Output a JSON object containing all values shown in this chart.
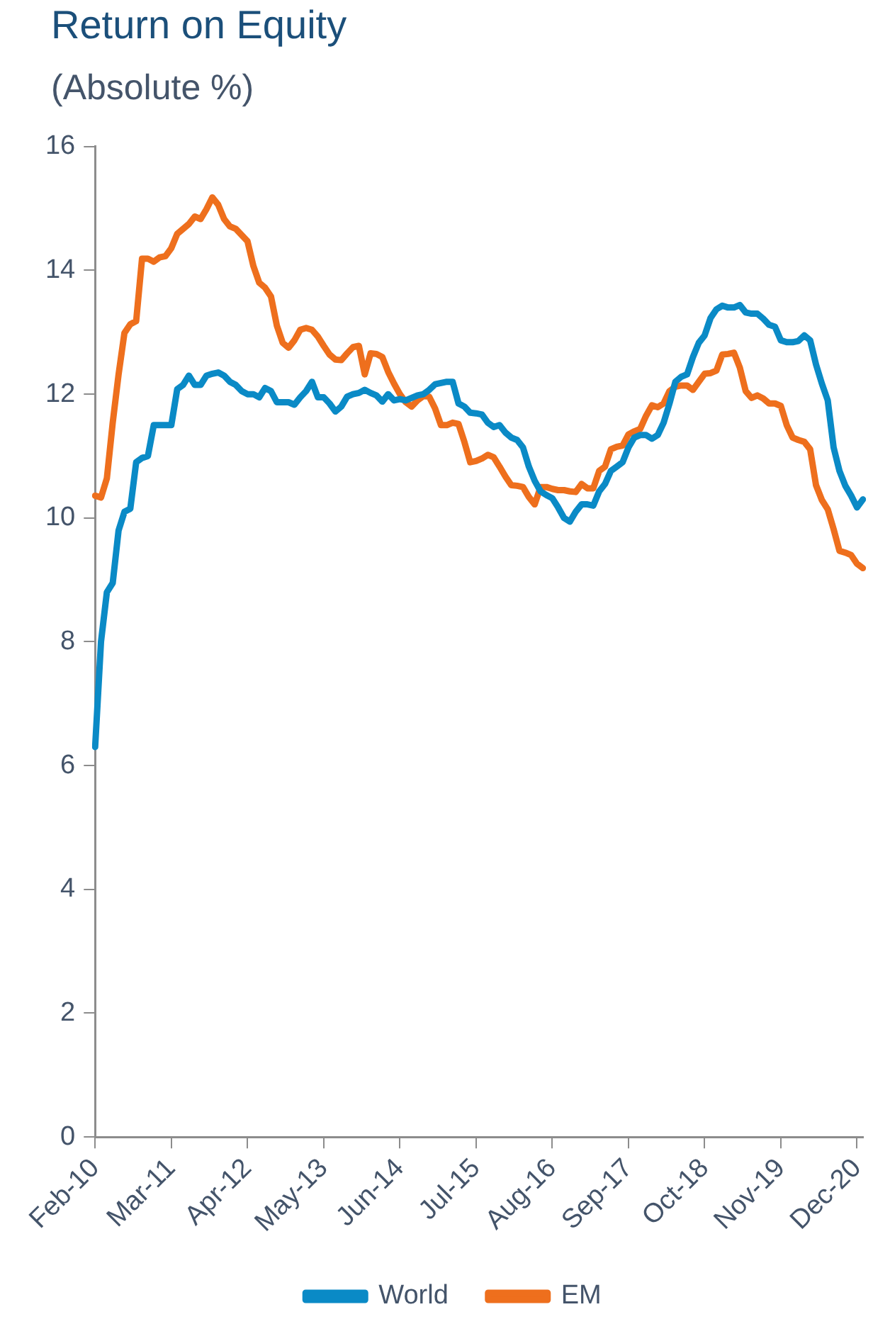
{
  "chart_data": {
    "type": "line",
    "title": "Return on Equity",
    "subtitle": "(Absolute %)",
    "categories": [
      "Feb-10",
      null,
      null,
      null,
      null,
      null,
      null,
      null,
      null,
      null,
      null,
      null,
      null,
      "Mar-11",
      null,
      null,
      null,
      null,
      null,
      null,
      null,
      null,
      null,
      null,
      null,
      null,
      "Apr-12",
      null,
      null,
      null,
      null,
      null,
      null,
      null,
      null,
      null,
      null,
      null,
      null,
      "May-13",
      null,
      null,
      null,
      null,
      null,
      null,
      null,
      null,
      null,
      null,
      null,
      null,
      "Jun-14",
      null,
      null,
      null,
      null,
      null,
      null,
      null,
      null,
      null,
      null,
      null,
      null,
      "Jul-15",
      null,
      null,
      null,
      null,
      null,
      null,
      null,
      null,
      null,
      null,
      null,
      null,
      "Aug-16",
      null,
      null,
      null,
      null,
      null,
      null,
      null,
      null,
      null,
      null,
      null,
      null,
      "Sep-17",
      null,
      null,
      null,
      null,
      null,
      null,
      null,
      null,
      null,
      null,
      null,
      null,
      "Oct-18",
      null,
      null,
      null,
      null,
      null,
      null,
      null,
      null,
      null,
      null,
      null,
      null,
      "Nov-19",
      null,
      null,
      null,
      null,
      null,
      null,
      null,
      null,
      null,
      null,
      null,
      null,
      "Dec-20",
      null
    ],
    "series": [
      {
        "name": "World",
        "color": "#0a8ac6",
        "values": [
          6.3,
          8.0,
          8.8,
          8.95,
          9.8,
          10.1,
          10.15,
          10.9,
          10.97,
          11.0,
          11.5,
          11.5,
          11.5,
          11.5,
          12.08,
          12.15,
          12.3,
          12.15,
          12.15,
          12.3,
          12.33,
          12.35,
          12.3,
          12.2,
          12.15,
          12.05,
          12.0,
          12.0,
          11.95,
          12.1,
          12.05,
          11.87,
          11.87,
          11.87,
          11.83,
          11.95,
          12.05,
          12.2,
          11.95,
          11.95,
          11.85,
          11.72,
          11.8,
          11.96,
          12.0,
          12.02,
          12.07,
          12.02,
          11.98,
          11.88,
          12.0,
          11.9,
          11.92,
          11.9,
          11.94,
          11.98,
          12.0,
          12.07,
          12.16,
          12.18,
          12.2,
          12.2,
          11.85,
          11.8,
          11.7,
          11.69,
          11.67,
          11.54,
          11.47,
          11.5,
          11.38,
          11.3,
          11.26,
          11.14,
          10.83,
          10.6,
          10.43,
          10.37,
          10.32,
          10.17,
          10.0,
          9.94,
          10.1,
          10.22,
          10.22,
          10.2,
          10.43,
          10.55,
          10.76,
          10.83,
          10.9,
          11.14,
          11.3,
          11.34,
          11.34,
          11.28,
          11.34,
          11.54,
          11.85,
          12.2,
          12.28,
          12.32,
          12.6,
          12.83,
          12.95,
          13.23,
          13.37,
          13.43,
          13.4,
          13.4,
          13.44,
          13.32,
          13.3,
          13.3,
          13.22,
          13.12,
          13.09,
          12.87,
          12.84,
          12.84,
          12.86,
          12.95,
          12.87,
          12.48,
          12.17,
          11.9,
          11.14,
          10.76,
          10.52,
          10.36,
          10.17,
          10.3
        ]
      },
      {
        "name": "EM",
        "color": "#ee6f1d",
        "values": [
          10.36,
          10.33,
          10.64,
          11.54,
          12.32,
          12.99,
          13.13,
          13.18,
          14.19,
          14.19,
          14.14,
          14.21,
          14.23,
          14.36,
          14.59,
          14.67,
          14.75,
          14.87,
          14.83,
          14.99,
          15.18,
          15.06,
          14.83,
          14.71,
          14.67,
          14.57,
          14.47,
          14.07,
          13.8,
          13.72,
          13.58,
          13.11,
          12.83,
          12.75,
          12.87,
          13.04,
          13.07,
          13.04,
          12.93,
          12.78,
          12.64,
          12.56,
          12.55,
          12.66,
          12.76,
          12.78,
          12.32,
          12.66,
          12.65,
          12.6,
          12.36,
          12.17,
          12.0,
          11.87,
          11.8,
          11.9,
          11.97,
          11.96,
          11.77,
          11.5,
          11.5,
          11.54,
          11.52,
          11.23,
          10.9,
          10.92,
          10.96,
          11.02,
          10.98,
          10.83,
          10.67,
          10.53,
          10.52,
          10.5,
          10.34,
          10.22,
          10.5,
          10.5,
          10.47,
          10.45,
          10.45,
          10.43,
          10.42,
          10.55,
          10.48,
          10.48,
          10.76,
          10.83,
          11.11,
          11.15,
          11.17,
          11.35,
          11.4,
          11.44,
          11.65,
          11.82,
          11.79,
          11.85,
          12.05,
          12.12,
          12.14,
          12.14,
          12.07,
          12.2,
          12.33,
          12.34,
          12.38,
          12.64,
          12.65,
          12.67,
          12.43,
          12.05,
          11.94,
          11.98,
          11.93,
          11.85,
          11.85,
          11.81,
          11.5,
          11.3,
          11.26,
          11.23,
          11.11,
          10.53,
          10.29,
          10.14,
          9.82,
          9.47,
          9.44,
          9.4,
          9.26,
          9.19
        ]
      }
    ],
    "ylim": [
      0,
      16
    ],
    "yticks": [
      0,
      2,
      4,
      6,
      8,
      10,
      12,
      14,
      16
    ],
    "legend": "bottom",
    "marker": "none",
    "line_style": "solid"
  }
}
